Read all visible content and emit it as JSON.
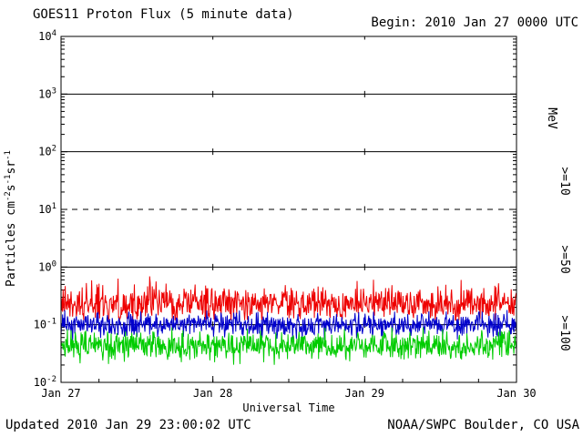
{
  "header": {
    "begin_label": "Begin: 2010 Jan 27 0000 UTC"
  },
  "footer": {
    "updated": "Updated 2010 Jan 29 23:00:02 UTC",
    "source": "NOAA/SWPC Boulder, CO USA"
  },
  "chart_data": {
    "type": "line",
    "title": "GOES11 Proton Flux (5 minute data)",
    "xlabel": "Universal Time",
    "ylabel_parts": [
      {
        "t": "Particles  cm"
      },
      {
        "sup": "-2"
      },
      {
        "t": "s"
      },
      {
        "sup": "-1"
      },
      {
        "t": "sr"
      },
      {
        "sup": "-1"
      }
    ],
    "x_axis": {
      "tick_labels": [
        "Jan 27",
        "Jan 28",
        "Jan 29",
        "Jan 30"
      ],
      "span_days": 3,
      "minor_tick_hours": 6
    },
    "y_axis": {
      "scale": "log",
      "min": 0.01,
      "max": 10000,
      "decade_exponents": [
        4,
        3,
        2,
        1,
        0,
        -1,
        -2
      ]
    },
    "grid": {
      "horizontal_solid_at": [
        1000,
        100,
        1,
        0.1
      ],
      "horizontal_dashed_at": [
        10
      ],
      "vertical_dashed_at_day": [
        1,
        2
      ]
    },
    "right_axis_labels": [
      {
        "text": "MeV",
        "color": "#000000"
      },
      {
        "text": ">=10",
        "color": "#ee0000"
      },
      {
        "text": ">=50",
        "color": "#0000cc"
      },
      {
        "text": ">=100",
        "color": "#00cc00"
      }
    ],
    "series": [
      {
        "name": "Protons >=10 MeV",
        "label": ">=10",
        "color": "#ee0000",
        "approx_level": 0.23,
        "approx_range": [
          0.12,
          0.7
        ],
        "pattern": "flat noisy band, no proton events",
        "cadence_minutes": 5
      },
      {
        "name": "Protons >=50 MeV",
        "label": ">=50",
        "color": "#0000cc",
        "approx_level": 0.1,
        "approx_range": [
          0.05,
          0.18
        ],
        "pattern": "flat noisy band, no proton events",
        "cadence_minutes": 5
      },
      {
        "name": "Protons >=100 MeV",
        "label": ">=100",
        "color": "#00cc00",
        "approx_level": 0.043,
        "approx_range": [
          0.02,
          0.09
        ],
        "pattern": "flat noisy band, no proton events",
        "cadence_minutes": 5
      }
    ]
  }
}
